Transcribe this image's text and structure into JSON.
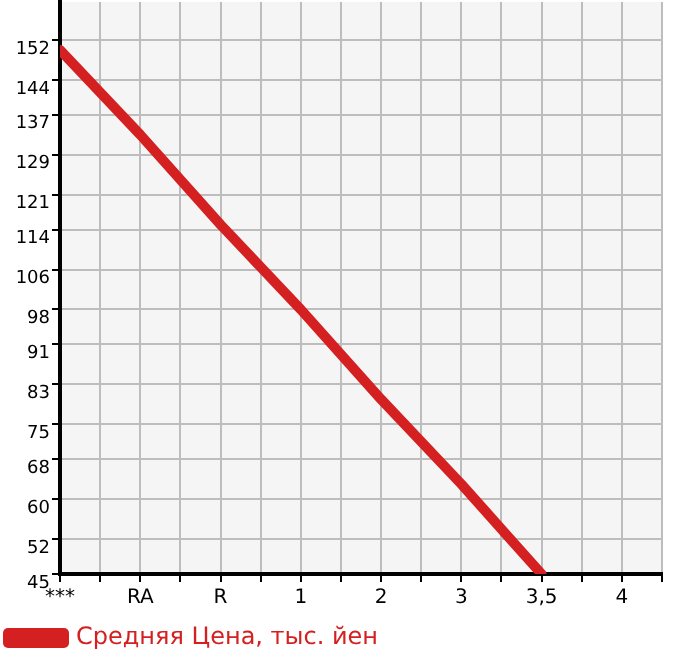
{
  "chart_data": {
    "type": "line",
    "categories": [
      "***",
      "RA",
      "R",
      "1",
      "2",
      "3",
      "3,5",
      "4"
    ],
    "series": [
      {
        "name": "Средняя Цена, тыс. йен",
        "color": "#d42020",
        "values": [
          150,
          133,
          115,
          98,
          80,
          63,
          45,
          null
        ]
      }
    ],
    "ylim": [
      45,
      159.6
    ],
    "yticks": [
      45,
      52,
      60,
      68,
      75,
      83,
      91,
      98,
      106,
      114,
      121,
      129,
      137,
      144,
      152
    ],
    "grid": true,
    "legend": "bottom left",
    "marker": "none",
    "line_style": "solid"
  }
}
